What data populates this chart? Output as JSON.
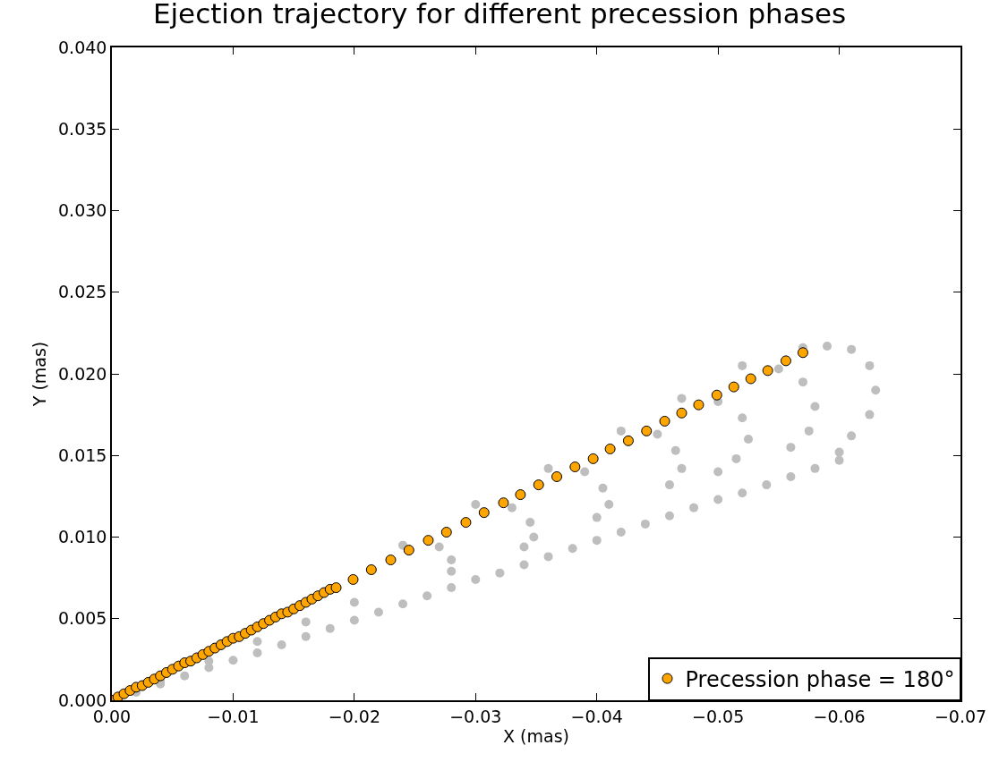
{
  "chart_data": {
    "type": "scatter",
    "title": "Ejection trajectory for different precession phases",
    "xlabel": "X (mas)",
    "ylabel": "Y (mas)",
    "xlim": [
      0,
      -0.07
    ],
    "ylim": [
      0,
      0.04
    ],
    "xticks": [
      {
        "value": 0,
        "label": "0.00"
      },
      {
        "value": -0.01,
        "label": "−0.01"
      },
      {
        "value": -0.02,
        "label": "−0.02"
      },
      {
        "value": -0.03,
        "label": "−0.03"
      },
      {
        "value": -0.04,
        "label": "−0.04"
      },
      {
        "value": -0.05,
        "label": "−0.05"
      },
      {
        "value": -0.06,
        "label": "−0.06"
      },
      {
        "value": -0.07,
        "label": "−0.07"
      }
    ],
    "yticks": [
      {
        "value": 0,
        "label": "0.000"
      },
      {
        "value": 0.005,
        "label": "0.005"
      },
      {
        "value": 0.01,
        "label": "0.010"
      },
      {
        "value": 0.015,
        "label": "0.015"
      },
      {
        "value": 0.02,
        "label": "0.020"
      },
      {
        "value": 0.025,
        "label": "0.025"
      },
      {
        "value": 0.03,
        "label": "0.030"
      },
      {
        "value": 0.035,
        "label": "0.035"
      },
      {
        "value": 0.04,
        "label": "0.040"
      }
    ],
    "legend": "bottom right",
    "marker": "circle",
    "series": [
      {
        "color": "#bebebe",
        "x": [
          -0.002,
          -0.004,
          -0.006,
          -0.008,
          -0.01,
          -0.012,
          -0.014,
          -0.016,
          -0.018,
          -0.02,
          -0.022,
          -0.024,
          -0.026,
          -0.028,
          -0.03,
          -0.032,
          -0.034,
          -0.036,
          -0.038,
          -0.04,
          -0.042,
          -0.044,
          -0.046,
          -0.048,
          -0.05,
          -0.052,
          -0.054,
          -0.056,
          -0.058,
          -0.06,
          -0.004,
          -0.008,
          -0.012,
          -0.016,
          -0.02,
          -0.057,
          -0.059,
          -0.061,
          -0.0625,
          -0.063,
          -0.0625,
          -0.061,
          -0.06,
          -0.052,
          -0.055,
          -0.057,
          -0.058,
          -0.0575,
          -0.056,
          -0.047,
          -0.05,
          -0.052,
          -0.0525,
          -0.0515,
          -0.05,
          -0.042,
          -0.045,
          -0.0465,
          -0.047,
          -0.046,
          -0.036,
          -0.039,
          -0.0405,
          -0.041,
          -0.04,
          -0.03,
          -0.033,
          -0.0345,
          -0.0348,
          -0.034,
          -0.024,
          -0.027,
          -0.028,
          -0.028
        ],
        "values": [
          0.0005,
          0.001,
          0.0015,
          0.002,
          0.00245,
          0.0029,
          0.0034,
          0.0039,
          0.0044,
          0.0049,
          0.0054,
          0.0059,
          0.0064,
          0.0069,
          0.0074,
          0.0078,
          0.0083,
          0.0088,
          0.0093,
          0.0098,
          0.0103,
          0.0108,
          0.0113,
          0.0118,
          0.0123,
          0.0127,
          0.0132,
          0.0137,
          0.0142,
          0.0147,
          0.0012,
          0.0024,
          0.0036,
          0.0048,
          0.006,
          0.0216,
          0.0217,
          0.0215,
          0.0205,
          0.019,
          0.0175,
          0.0162,
          0.0152,
          0.0205,
          0.0203,
          0.0195,
          0.018,
          0.0165,
          0.0155,
          0.0185,
          0.0183,
          0.0173,
          0.016,
          0.0148,
          0.014,
          0.0165,
          0.0163,
          0.0153,
          0.0142,
          0.0132,
          0.0142,
          0.014,
          0.013,
          0.012,
          0.0112,
          0.012,
          0.0118,
          0.0109,
          0.01,
          0.0094,
          0.0095,
          0.0094,
          0.0086,
          0.0079
        ]
      },
      {
        "name": "Precession phase = 180°",
        "color": "#ffa500",
        "x": [
          0,
          -0.0005,
          -0.001,
          -0.0015,
          -0.002,
          -0.0025,
          -0.003,
          -0.0035,
          -0.004,
          -0.0045,
          -0.005,
          -0.0055,
          -0.006,
          -0.0065,
          -0.007,
          -0.0075,
          -0.008,
          -0.0085,
          -0.009,
          -0.0095,
          -0.01,
          -0.0105,
          -0.011,
          -0.0115,
          -0.012,
          -0.0125,
          -0.013,
          -0.0135,
          -0.014,
          -0.0145,
          -0.015,
          -0.0155,
          -0.016,
          -0.0165,
          -0.017,
          -0.0175,
          -0.018,
          -0.0185,
          -0.0199,
          -0.0214,
          -0.023,
          -0.0245,
          -0.0261,
          -0.0276,
          -0.0292,
          -0.0307,
          -0.0323,
          -0.0337,
          -0.0352,
          -0.0367,
          -0.0382,
          -0.0397,
          -0.0411,
          -0.0426,
          -0.0441,
          -0.0456,
          -0.047,
          -0.0484,
          -0.0499,
          -0.0513,
          -0.0527,
          -0.0541,
          -0.0556,
          -0.057
        ],
        "values": [
          0,
          0.0002,
          0.0004,
          0.0006,
          0.0008,
          0.0009,
          0.0011,
          0.0013,
          0.0015,
          0.0017,
          0.0019,
          0.0021,
          0.0023,
          0.0024,
          0.0026,
          0.0028,
          0.003,
          0.0032,
          0.0034,
          0.0036,
          0.0038,
          0.0039,
          0.0041,
          0.0043,
          0.0045,
          0.0047,
          0.0049,
          0.0051,
          0.0053,
          0.0054,
          0.0056,
          0.0058,
          0.006,
          0.0062,
          0.0064,
          0.0066,
          0.0068,
          0.0069,
          0.0074,
          0.008,
          0.0086,
          0.0092,
          0.0098,
          0.0103,
          0.0109,
          0.0115,
          0.0121,
          0.0126,
          0.0132,
          0.0137,
          0.0143,
          0.0148,
          0.0154,
          0.0159,
          0.0165,
          0.0171,
          0.0176,
          0.0181,
          0.0187,
          0.0192,
          0.0197,
          0.0202,
          0.0208,
          0.0213
        ]
      }
    ]
  }
}
